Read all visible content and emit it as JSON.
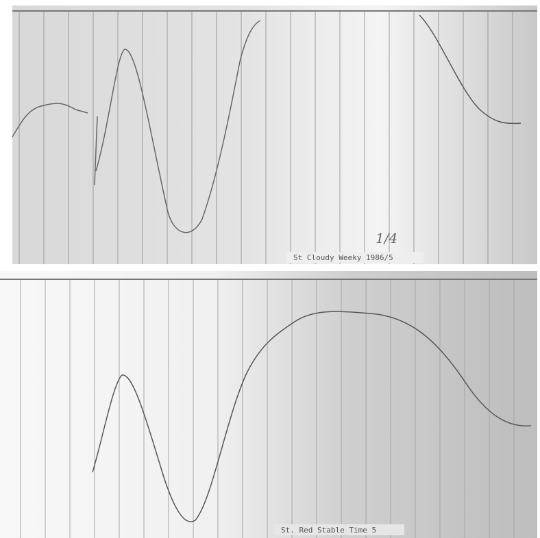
{
  "top_panel": {
    "caption": "St Cloudy Weeky 1986/5",
    "annotation": "1/4"
  },
  "bottom_panel": {
    "caption": "St. Red Stable Time 5"
  }
}
